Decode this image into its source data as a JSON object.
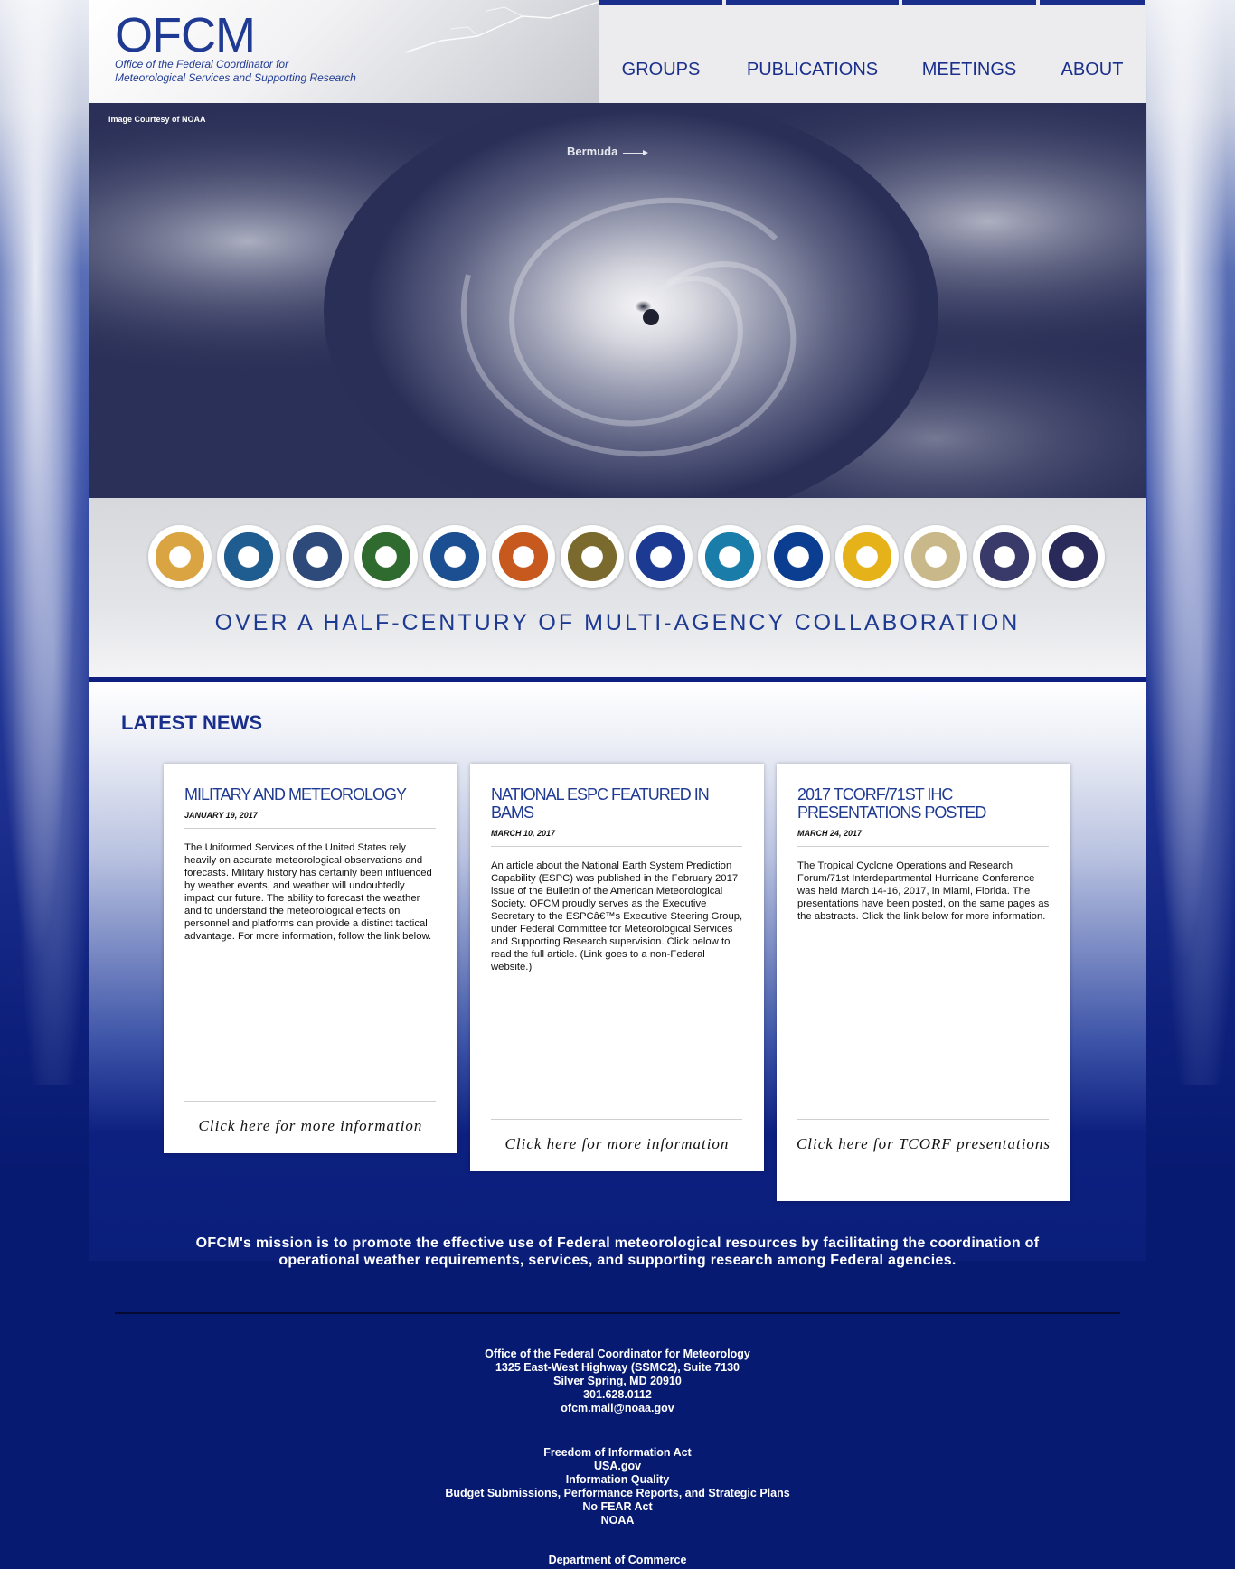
{
  "header": {
    "logo_title": "OFCM",
    "logo_subtitle_1": "Office of the Federal Coordinator for",
    "logo_subtitle_2": "Meteorological Services and Supporting Research"
  },
  "nav": {
    "groups": "GROUPS",
    "publications": "PUBLICATIONS",
    "meetings": "MEETINGS",
    "about": "ABOUT"
  },
  "hero": {
    "credit": "Image Courtesy of NOAA",
    "label": "Bermuda"
  },
  "seals": [
    {
      "name": "interior-seal",
      "color": "#d9a441"
    },
    {
      "name": "commerce-seal",
      "color": "#1f5c8f"
    },
    {
      "name": "defense-seal",
      "color": "#2e4a7a"
    },
    {
      "name": "energy-seal",
      "color": "#2f6b2f"
    },
    {
      "name": "homeland-security-seal",
      "color": "#1c4f91"
    },
    {
      "name": "interior-bison-seal",
      "color": "#c7591e"
    },
    {
      "name": "state-seal",
      "color": "#7a6a2e"
    },
    {
      "name": "transportation-seal",
      "color": "#1d3a93"
    },
    {
      "name": "epa-seal",
      "color": "#1a7ca8"
    },
    {
      "name": "nasa-seal",
      "color": "#0b3d91"
    },
    {
      "name": "nsf-seal",
      "color": "#e6b21a"
    },
    {
      "name": "ntsb-seal",
      "color": "#c9b88a"
    },
    {
      "name": "nrc-seal",
      "color": "#3a3a6a"
    },
    {
      "name": "executive-office-seal",
      "color": "#2a2a5a"
    }
  ],
  "tagline": "OVER A HALF-CENTURY OF MULTI-AGENCY COLLABORATION",
  "news": {
    "heading": "LATEST NEWS",
    "cards": [
      {
        "title": "MILITARY AND METEOROLOGY",
        "date": "JANUARY 19, 2017",
        "body": "The Uniformed Services of the United States rely heavily on accurate meteorological observations and forecasts. Military history has certainly been influenced by weather events, and weather will undoubtedly impact our future. The ability to forecast the weather and to understand the meteorological effects on personnel and platforms can provide a distinct tactical advantage. For more information, follow the link below.",
        "link": "Click here for more information"
      },
      {
        "title": "NATIONAL ESPC FEATURED IN BAMS",
        "date": "MARCH 10, 2017",
        "body": "An article about the National Earth System Prediction Capability (ESPC) was published in the February 2017 issue of the Bulletin of the American Meteorological Society. OFCM proudly serves as the Executive Secretary to the ESPCâ€™s Executive Steering Group, under Federal Committee for Meteorological Services and Supporting Research supervision. Click below to read the full article. (Link goes to a non-Federal website.)",
        "link": "Click here for more information"
      },
      {
        "title": "2017 TCORF/71ST IHC PRESENTATIONS POSTED",
        "date": "MARCH 24, 2017",
        "body": "The Tropical Cyclone Operations and Research Forum/71st Interdepartmental Hurricane Conference was held March 14-16, 2017, in Miami, Florida. The presentations have been posted, on the same pages as the abstracts. Click the link below for more information.",
        "link": "Click here for TCORF presentations"
      }
    ]
  },
  "mission": "OFCM's mission is to promote the effective use of Federal meteorological resources by facilitating the coordination of operational weather requirements, services, and supporting research among Federal agencies.",
  "footer": {
    "address": [
      "Office of the Federal Coordinator for Meteorology",
      "1325 East-West Highway (SSMC2), Suite 7130",
      "Silver Spring, MD 20910",
      "301.628.0112",
      "ofcm.mail@noaa.gov"
    ],
    "links": [
      "Freedom of Information Act",
      "USA.gov",
      "Information Quality",
      "Budget Submissions, Performance Reports, and Strategic Plans",
      "No FEAR Act",
      "NOAA"
    ],
    "department": "Department of Commerce"
  }
}
